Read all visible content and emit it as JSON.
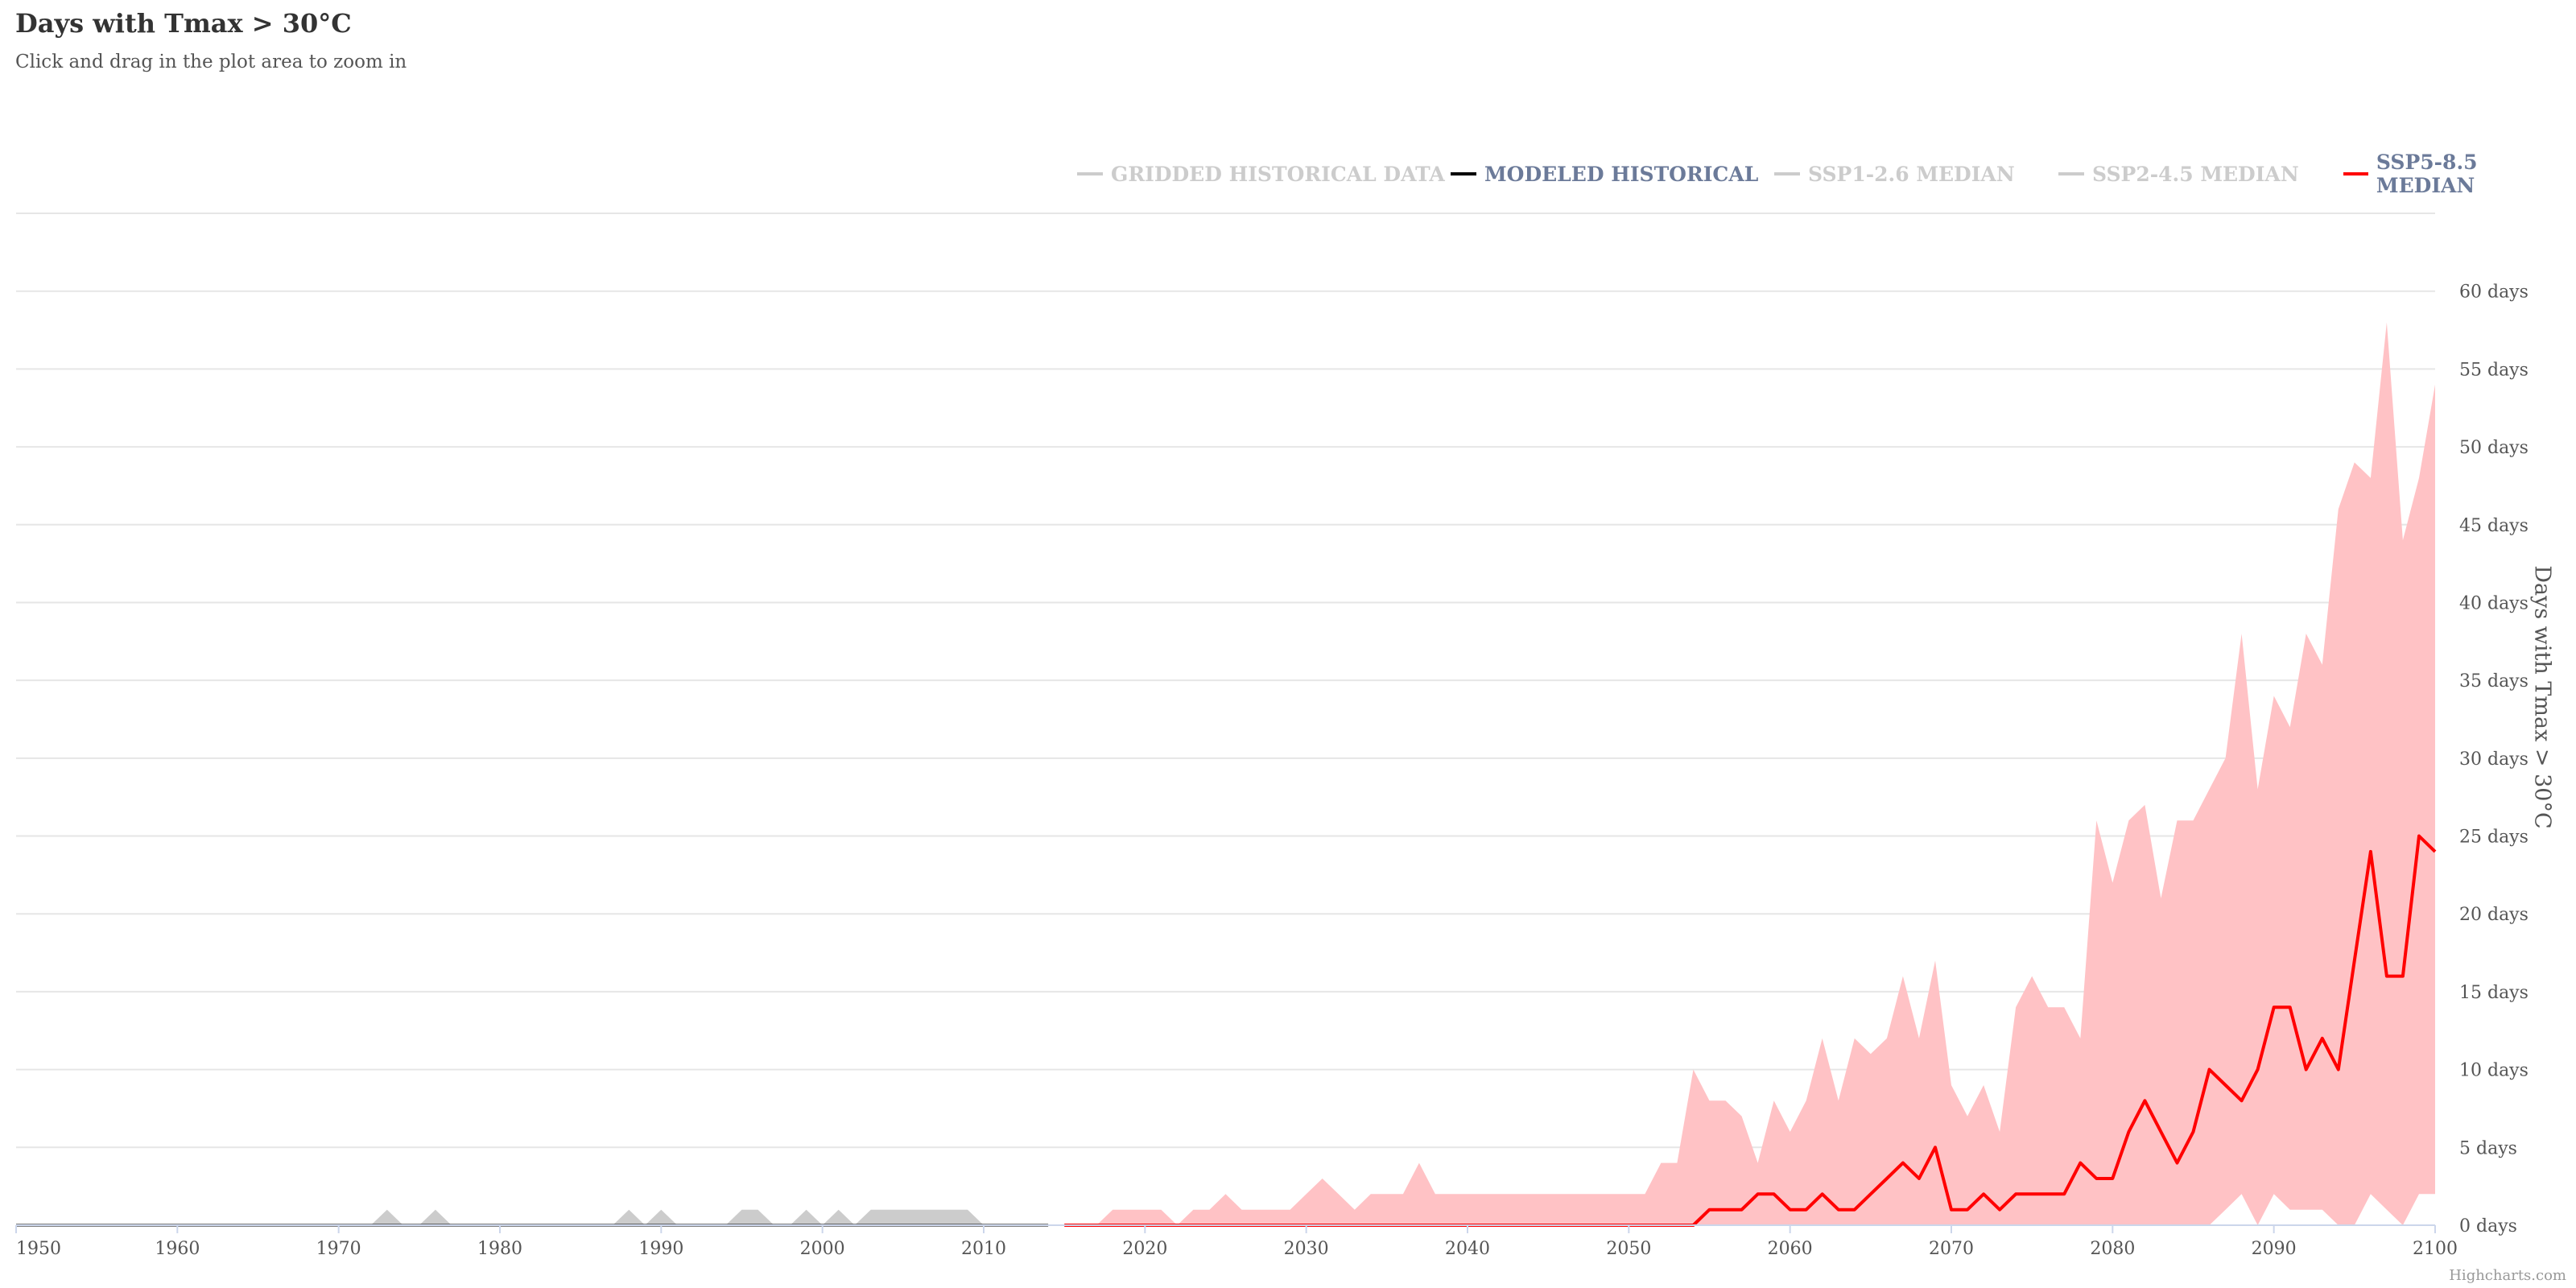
{
  "chart_data": {
    "type": "line",
    "title": "Days with Tmax > 30°C",
    "subtitle": "Click and drag in the plot area to zoom in",
    "ylabel": "Days with Tmax > 30°C",
    "y_unit_suffix": " days",
    "xlim": [
      1950,
      2100
    ],
    "ylim": [
      0,
      65
    ],
    "x_ticks": [
      1950,
      1960,
      1970,
      1980,
      1990,
      2000,
      2010,
      2020,
      2030,
      2040,
      2050,
      2060,
      2070,
      2080,
      2090,
      2100
    ],
    "y_ticks": [
      0,
      5,
      10,
      15,
      20,
      25,
      30,
      35,
      40,
      45,
      50,
      55,
      60
    ],
    "legend_position": "top-right",
    "grid": true,
    "credits": "Highcharts.com",
    "colors": {
      "band": "#ffc2c5",
      "ssp585": "#ff0000",
      "hist": "#000000",
      "gridded": "#cccccc",
      "grid": "#e6e6e6",
      "legend_active": "#6b7a99",
      "legend_inactive": "#cccccc"
    },
    "legend": [
      {
        "name": "GRIDDED HISTORICAL DATA",
        "active": false,
        "color": "#cccccc"
      },
      {
        "name": "MODELED HISTORICAL",
        "active": true,
        "color": "#000000"
      },
      {
        "name": "SSP1-2.6 MEDIAN",
        "active": false,
        "color": "#cccccc"
      },
      {
        "name": "SSP2-4.5 MEDIAN",
        "active": false,
        "color": "#cccccc"
      },
      {
        "name": "SSP5-8.5 MEDIAN",
        "active": true,
        "color": "#ff0000"
      }
    ],
    "gridded_historical": {
      "x": [
        1972,
        1973,
        1974,
        1975,
        1976,
        1977,
        1987,
        1988,
        1989,
        1990,
        1991,
        1994,
        1995,
        1996,
        1997,
        1998,
        1999,
        2000,
        2001,
        2002,
        2003,
        2004,
        2005,
        2006,
        2007,
        2008,
        2009,
        2010
      ],
      "y": [
        0,
        1,
        0,
        0,
        1,
        0,
        0,
        1,
        0,
        1,
        0,
        0,
        1,
        1,
        0,
        0,
        1,
        0,
        1,
        0,
        1,
        1,
        1,
        1,
        1,
        1,
        1,
        0
      ]
    },
    "modeled_historical": {
      "x": [
        1950,
        2014
      ],
      "y": [
        0,
        0
      ]
    },
    "ssp585_median": {
      "x": [
        2015,
        2016,
        2017,
        2018,
        2019,
        2020,
        2021,
        2022,
        2023,
        2024,
        2025,
        2026,
        2027,
        2028,
        2029,
        2030,
        2031,
        2032,
        2033,
        2034,
        2035,
        2036,
        2037,
        2038,
        2039,
        2040,
        2041,
        2042,
        2043,
        2044,
        2045,
        2046,
        2047,
        2048,
        2049,
        2050,
        2051,
        2052,
        2053,
        2054,
        2055,
        2056,
        2057,
        2058,
        2059,
        2060,
        2061,
        2062,
        2063,
        2064,
        2065,
        2066,
        2067,
        2068,
        2069,
        2070,
        2071,
        2072,
        2073,
        2074,
        2075,
        2076,
        2077,
        2078,
        2079,
        2080,
        2081,
        2082,
        2083,
        2084,
        2085,
        2086,
        2087,
        2088,
        2089,
        2090,
        2091,
        2092,
        2093,
        2094,
        2095,
        2096,
        2097,
        2098,
        2099,
        2100
      ],
      "y": [
        0,
        0,
        0,
        0,
        0,
        0,
        0,
        0,
        0,
        0,
        0,
        0,
        0,
        0,
        0,
        0,
        0,
        0,
        0,
        0,
        0,
        0,
        0,
        0,
        0,
        0,
        0,
        0,
        0,
        0,
        0,
        0,
        0,
        0,
        0,
        0,
        0,
        0,
        0,
        0,
        1,
        1,
        1,
        2,
        2,
        1,
        1,
        2,
        1,
        1,
        2,
        3,
        4,
        3,
        5,
        1,
        1,
        2,
        1,
        2,
        2,
        2,
        2,
        4,
        3,
        3,
        6,
        8,
        6,
        4,
        6,
        10,
        9,
        8,
        10,
        14,
        14,
        10,
        12,
        10,
        17,
        24,
        16,
        16,
        25,
        24
      ]
    },
    "ssp585_range": {
      "x": [
        2015,
        2016,
        2017,
        2018,
        2019,
        2020,
        2021,
        2022,
        2023,
        2024,
        2025,
        2026,
        2027,
        2028,
        2029,
        2030,
        2031,
        2032,
        2033,
        2034,
        2035,
        2036,
        2037,
        2038,
        2039,
        2040,
        2041,
        2042,
        2043,
        2044,
        2045,
        2046,
        2047,
        2048,
        2049,
        2050,
        2051,
        2052,
        2053,
        2054,
        2055,
        2056,
        2057,
        2058,
        2059,
        2060,
        2061,
        2062,
        2063,
        2064,
        2065,
        2066,
        2067,
        2068,
        2069,
        2070,
        2071,
        2072,
        2073,
        2074,
        2075,
        2076,
        2077,
        2078,
        2079,
        2080,
        2081,
        2082,
        2083,
        2084,
        2085,
        2086,
        2087,
        2088,
        2089,
        2090,
        2091,
        2092,
        2093,
        2094,
        2095,
        2096,
        2097,
        2098,
        2099,
        2100
      ],
      "low": [
        0,
        0,
        0,
        0,
        0,
        0,
        0,
        0,
        0,
        0,
        0,
        0,
        0,
        0,
        0,
        0,
        0,
        0,
        0,
        0,
        0,
        0,
        0,
        0,
        0,
        0,
        0,
        0,
        0,
        0,
        0,
        0,
        0,
        0,
        0,
        0,
        0,
        0,
        0,
        0,
        0,
        0,
        0,
        0,
        0,
        0,
        0,
        0,
        0,
        0,
        0,
        0,
        0,
        0,
        0,
        0,
        0,
        0,
        0,
        0,
        0,
        0,
        0,
        0,
        0,
        0,
        0,
        0,
        0,
        0,
        0,
        0,
        1,
        2,
        0,
        2,
        1,
        1,
        1,
        0,
        0,
        2,
        1,
        0,
        2,
        2
      ],
      "high": [
        0,
        0,
        0,
        1,
        1,
        1,
        1,
        0,
        1,
        1,
        2,
        1,
        1,
        1,
        1,
        2,
        3,
        2,
        1,
        2,
        2,
        2,
        4,
        2,
        2,
        2,
        2,
        2,
        2,
        2,
        2,
        2,
        2,
        2,
        2,
        2,
        2,
        4,
        4,
        10,
        8,
        8,
        7,
        4,
        8,
        6,
        8,
        12,
        8,
        12,
        11,
        12,
        16,
        12,
        17,
        9,
        7,
        9,
        6,
        14,
        16,
        14,
        14,
        12,
        26,
        22,
        26,
        27,
        21,
        26,
        26,
        28,
        30,
        38,
        28,
        34,
        32,
        38,
        36,
        46,
        49,
        48,
        58,
        44,
        48,
        54
      ]
    }
  }
}
